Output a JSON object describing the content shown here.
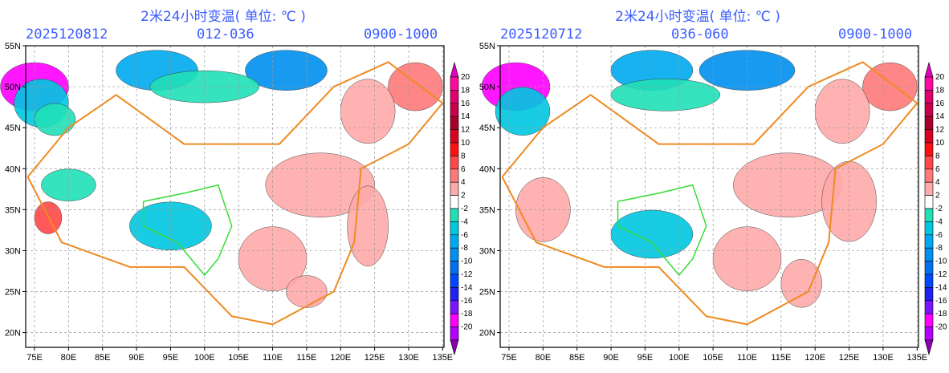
{
  "panels": [
    {
      "title": "2米24小时变温( 单位: ℃ )",
      "init_time": "2025120812",
      "forecast_range": "012-036",
      "valid_hours": "0900-1000"
    },
    {
      "title": "2米24小时变温( 单位: ℃ )",
      "init_time": "2025120712",
      "forecast_range": "036-060",
      "valid_hours": "0900-1000"
    }
  ],
  "axes": {
    "lon_ticks": [
      75,
      80,
      85,
      90,
      95,
      100,
      105,
      110,
      115,
      120,
      125,
      130,
      135
    ],
    "lon_labels": [
      "75E",
      "80E",
      "85E",
      "90E",
      "95E",
      "100E",
      "105E",
      "110E",
      "115E",
      "120E",
      "125E",
      "130E",
      "135E"
    ],
    "lat_ticks": [
      20,
      25,
      30,
      35,
      40,
      45,
      50,
      55
    ],
    "lat_labels": [
      "20N",
      "25N",
      "30N",
      "35N",
      "40N",
      "45N",
      "50N",
      "55N"
    ],
    "lon_range": [
      73.7,
      135.2
    ],
    "lat_range": [
      18.2,
      55
    ]
  },
  "colorbar": {
    "labels": [
      "20",
      "18",
      "16",
      "14",
      "12",
      "10",
      "8",
      "6",
      "4",
      "2",
      "-2",
      "-4",
      "-6",
      "-8",
      "-10",
      "-12",
      "-14",
      "-16",
      "-18",
      "-20"
    ],
    "colors": [
      "#ff0aa0",
      "#e00070",
      "#c8004a",
      "#a8002a",
      "#d80020",
      "#ff1010",
      "#ff4848",
      "#ff7a7a",
      "#ffaaaa",
      "#ffffff",
      "#20e0b8",
      "#00c8e0",
      "#00aaf0",
      "#0090f0",
      "#0070f0",
      "#0048ff",
      "#2020f0",
      "#7a14ff",
      "#ff00ff",
      "#b400ff"
    ],
    "top_arrow_color": "#e000c0",
    "bottom_arrow_color": "#8c00aa"
  }
}
